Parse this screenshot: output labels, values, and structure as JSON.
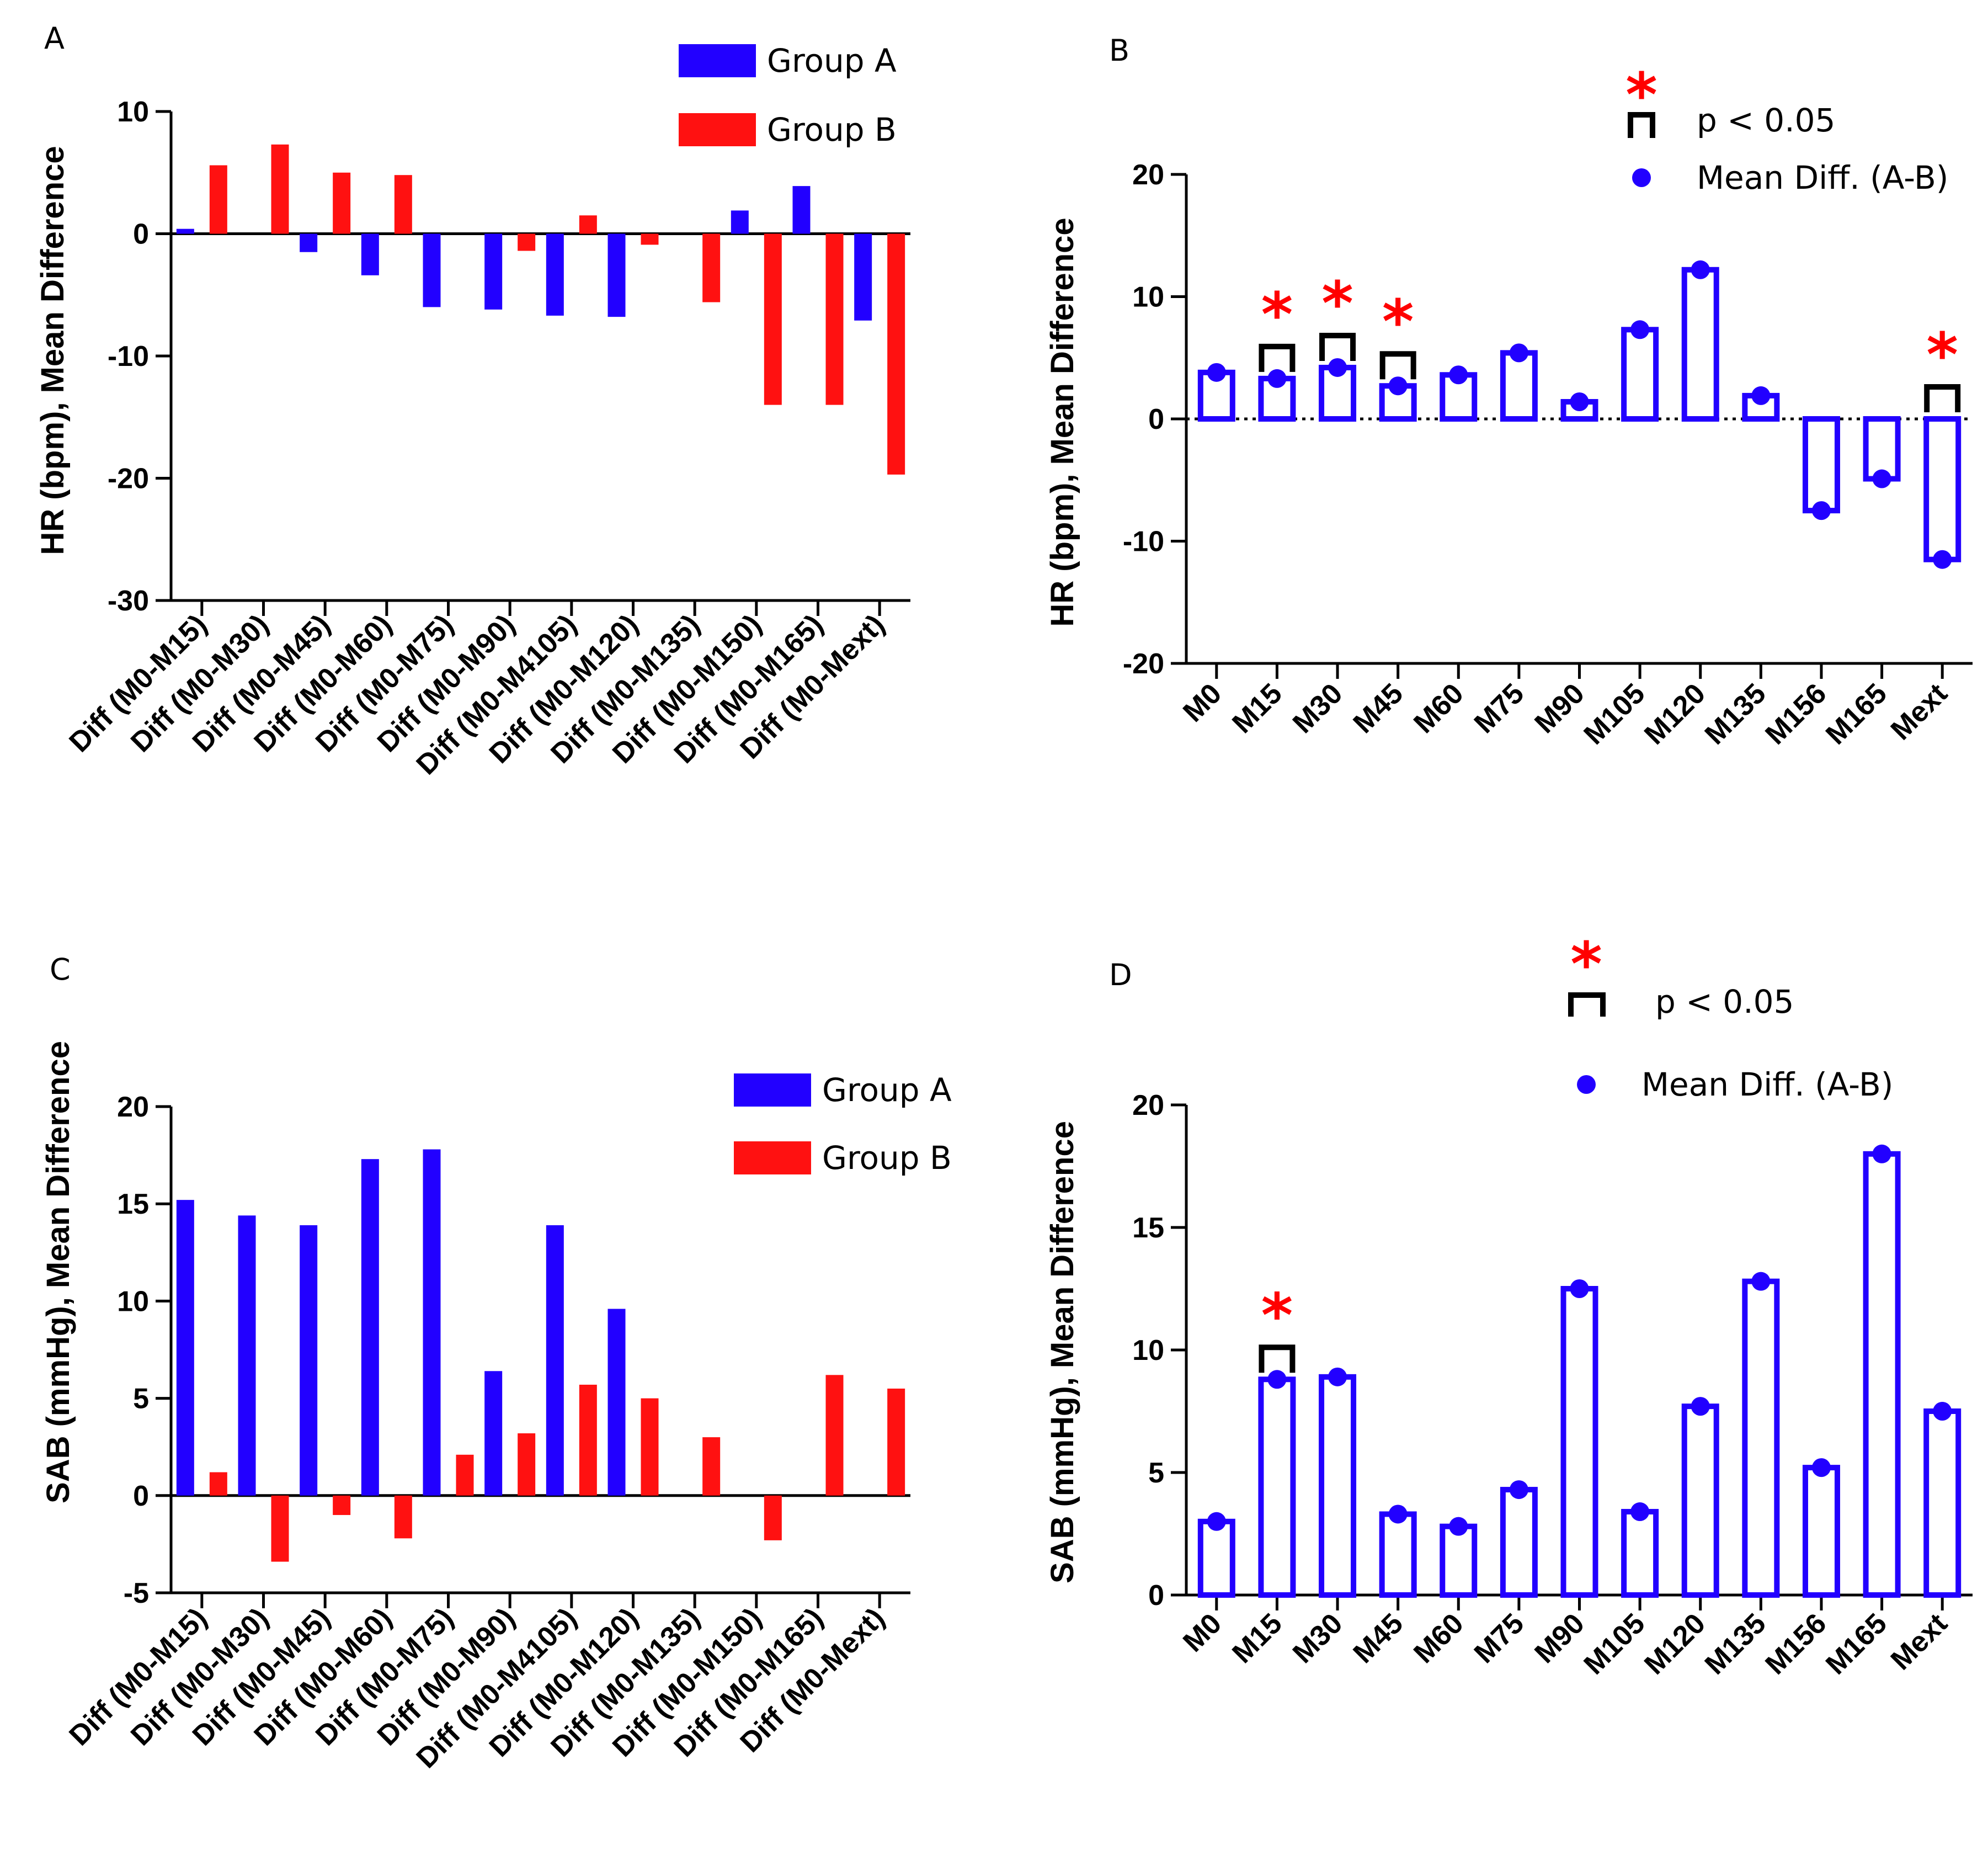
{
  "colors": {
    "group_a": "#2200ff",
    "group_b": "#ff1111",
    "outline": "#2200ff",
    "star": "#ff0000"
  },
  "chart_data": [
    {
      "panel": "A",
      "type": "bar",
      "ylabel": "HR (bpm), Mean Difference",
      "ylim": [
        -30,
        10
      ],
      "yticks": [
        10,
        0,
        -10,
        -20,
        -30
      ],
      "categories": [
        "Diff (M0-M15)",
        "Diff (M0-M30)",
        "Diff (M0-M45)",
        "Diff (M0-M60)",
        "Diff (M0-M75)",
        "Diff (M0-M90)",
        "Diff (M0-M4105)",
        "Diff (M0-M120)",
        "Diff (M0-M135)",
        "Diff (M0-M150)",
        "Diff (M0-M165)",
        "Diff (M0-Mext)"
      ],
      "series": [
        {
          "name": "Group A",
          "values": [
            0.4,
            0,
            -1.5,
            -3.4,
            -6,
            -6.2,
            -6.7,
            -6.8,
            0,
            1.9,
            3.9,
            -7.1
          ]
        },
        {
          "name": "Group B",
          "values": [
            5.6,
            7.3,
            5.0,
            4.8,
            0,
            -1.4,
            1.5,
            -0.9,
            -5.6,
            -14.0,
            -14.0,
            -19.7
          ]
        }
      ],
      "legend": [
        "Group A",
        "Group B"
      ],
      "legend_position": "top-right"
    },
    {
      "panel": "B",
      "type": "bar",
      "ylabel": "HR (bpm), Mean Difference",
      "ylim": [
        -20,
        20
      ],
      "yticks": [
        20,
        10,
        0,
        -10,
        -20
      ],
      "categories": [
        "M0",
        "M15",
        "M30",
        "M45",
        "M60",
        "M75",
        "M90",
        "M105",
        "M120",
        "M135",
        "M156",
        "M165",
        "Mext"
      ],
      "series": [
        {
          "name": "Mean Diff. (A-B)",
          "values": [
            3.8,
            3.3,
            4.2,
            2.7,
            3.6,
            5.4,
            1.4,
            7.3,
            12.2,
            1.9,
            -7.5,
            -4.9,
            -11.5
          ]
        }
      ],
      "significant": [
        "M15",
        "M30",
        "M45",
        "Mext"
      ],
      "legend": [
        "p < 0.05",
        "Mean Diff. (A-B)"
      ],
      "legend_position": "top-right"
    },
    {
      "panel": "C",
      "type": "bar",
      "ylabel": "SAB (mmHg), Mean Difference",
      "ylim": [
        -5,
        20
      ],
      "yticks": [
        20,
        15,
        10,
        5,
        0,
        -5
      ],
      "categories": [
        "Diff (M0-M15)",
        "Diff (M0-M30)",
        "Diff (M0-M45)",
        "Diff (M0-M60)",
        "Diff (M0-M75)",
        "Diff (M0-M90)",
        "Diff (M0-M4105)",
        "Diff (M0-M120)",
        "Diff (M0-M135)",
        "Diff (M0-M150)",
        "Diff (M0-M165)",
        "Diff (M0-Mext)"
      ],
      "series": [
        {
          "name": "Group A",
          "values": [
            15.2,
            14.4,
            13.9,
            17.3,
            17.8,
            6.4,
            13.9,
            9.6,
            0,
            0,
            0,
            0
          ]
        },
        {
          "name": "Group B",
          "values": [
            1.2,
            -3.4,
            -1.0,
            -2.2,
            2.1,
            3.2,
            5.7,
            5.0,
            3.0,
            -2.3,
            6.2,
            5.5
          ]
        }
      ],
      "legend": [
        "Group A",
        "Group B"
      ],
      "legend_position": "top-right"
    },
    {
      "panel": "D",
      "type": "bar",
      "ylabel": "SAB (mmHg), Mean Difference",
      "ylim": [
        0,
        20
      ],
      "yticks": [
        20,
        15,
        10,
        5,
        0
      ],
      "categories": [
        "M0",
        "M15",
        "M30",
        "M45",
        "M60",
        "M75",
        "M90",
        "M105",
        "M120",
        "M135",
        "M156",
        "M165",
        "Mext"
      ],
      "series": [
        {
          "name": "Mean Diff. (A-B)",
          "values": [
            3.0,
            8.8,
            8.9,
            3.3,
            2.8,
            4.3,
            12.5,
            3.4,
            7.7,
            12.8,
            5.2,
            18.0,
            7.5
          ]
        }
      ],
      "significant": [
        "M15"
      ],
      "legend": [
        "p < 0.05",
        "Mean Diff. (A-B)"
      ],
      "legend_position": "top-right"
    }
  ],
  "symbols": {
    "star": "*"
  }
}
